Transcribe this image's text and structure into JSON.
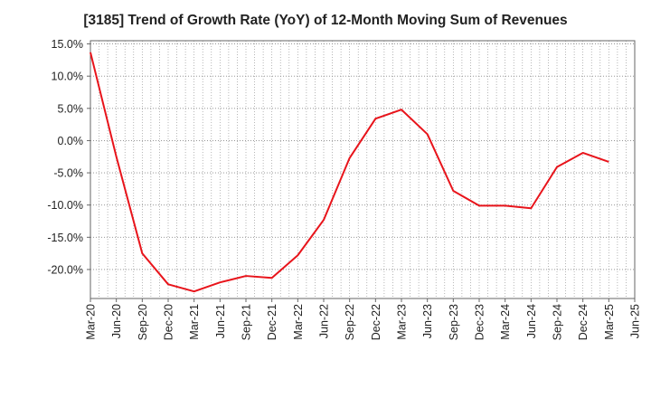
{
  "chart_data": {
    "type": "line",
    "title": "[3185]  Trend of Growth Rate (YoY) of 12-Month Moving Sum of Revenues",
    "xlabel": "",
    "ylabel": "",
    "x_tick_labels": [
      "Mar-20",
      "Jun-20",
      "Sep-20",
      "Dec-20",
      "Mar-21",
      "Jun-21",
      "Sep-21",
      "Dec-21",
      "Mar-22",
      "Jun-22",
      "Sep-22",
      "Dec-22",
      "Mar-23",
      "Jun-23",
      "Sep-23",
      "Dec-23",
      "Mar-24",
      "Jun-24",
      "Sep-24",
      "Dec-24",
      "Mar-25",
      "Jun-25"
    ],
    "y_tick_values": [
      15,
      10,
      5,
      0,
      -5,
      -10,
      -15,
      -20
    ],
    "y_tick_labels": [
      "15.0%",
      "10.0%",
      "5.0%",
      "0.0%",
      "-5.0%",
      "-10.0%",
      "-15.0%",
      "-20.0%"
    ],
    "ylim": [
      -24.5,
      15.5
    ],
    "grid": true,
    "series": [
      {
        "color": "#e8141b",
        "x": [
          "Mar-20",
          "Jun-20",
          "Sep-20",
          "Dec-20",
          "Mar-21",
          "Jun-21",
          "Sep-21",
          "Dec-21",
          "Mar-22",
          "Jun-22",
          "Sep-22",
          "Dec-22",
          "Mar-23",
          "Jun-23",
          "Sep-23",
          "Dec-23",
          "Mar-24",
          "Jun-24",
          "Sep-24",
          "Dec-24",
          "Mar-25"
        ],
        "values": [
          13.7,
          -2.5,
          -17.5,
          -22.3,
          -23.4,
          -22.0,
          -21.0,
          -21.3,
          -17.8,
          -12.3,
          -2.7,
          3.4,
          4.8,
          1.0,
          -7.8,
          -10.1,
          -10.1,
          -10.5,
          -4.1,
          -1.9,
          -3.3
        ]
      }
    ]
  }
}
